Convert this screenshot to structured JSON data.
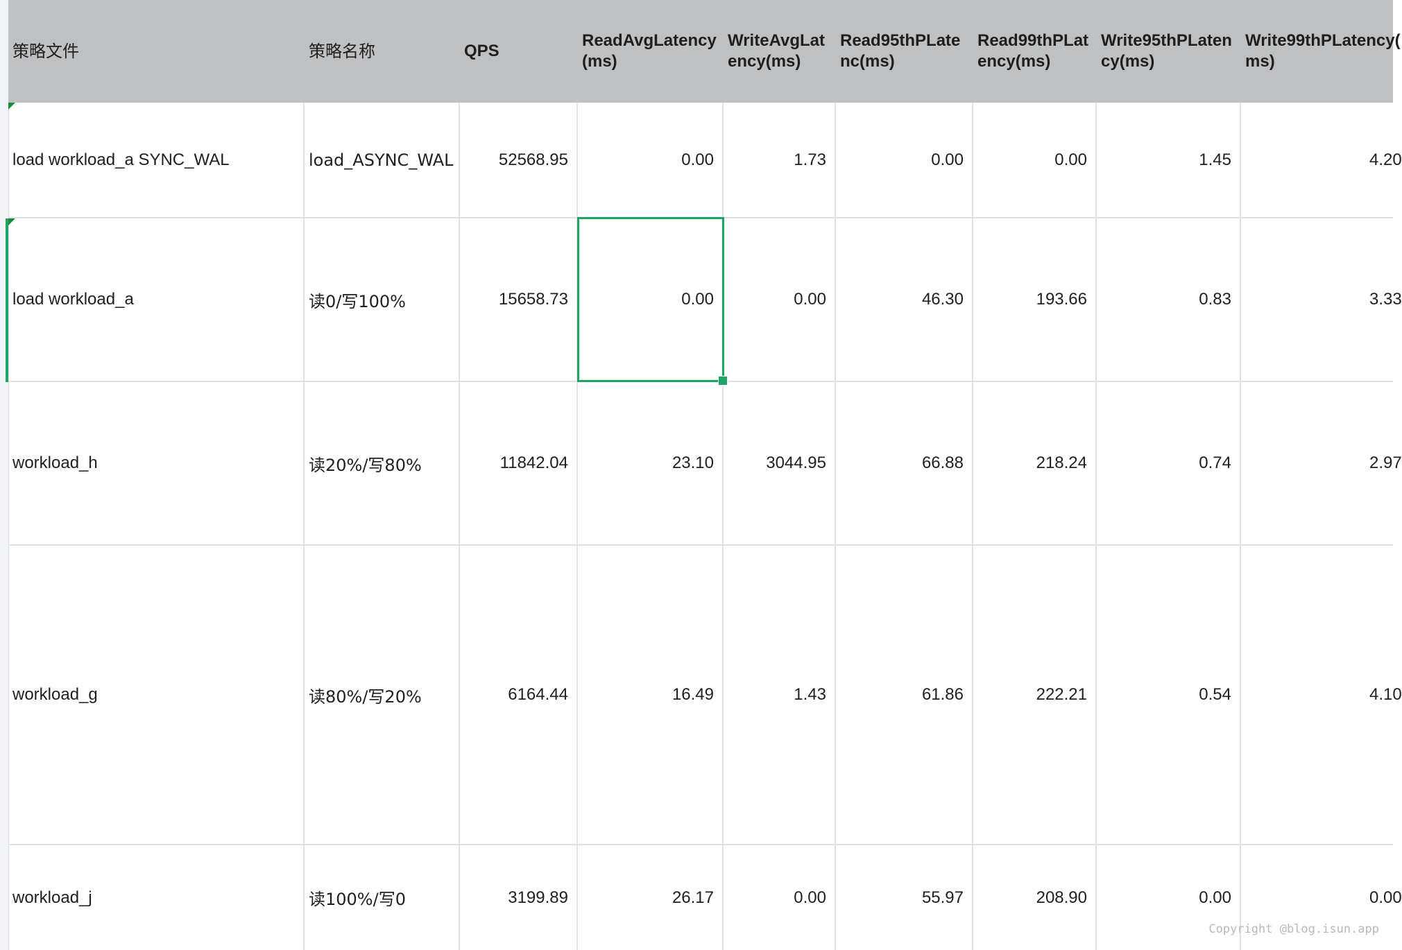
{
  "columns": [
    {
      "label": "策略文件"
    },
    {
      "label": "策略名称"
    },
    {
      "label": "QPS"
    },
    {
      "label": "ReadAvgLatency\n(ms)"
    },
    {
      "label": "WriteAvgLat\nency(ms)"
    },
    {
      "label": "Read95thPLate\nnc(ms)"
    },
    {
      "label": "Read99thPLat\nency(ms)"
    },
    {
      "label": "Write95thPLaten\ncy(ms)"
    },
    {
      "label": "Write99thPLatency(\nms)"
    }
  ],
  "rows": [
    {
      "file": "load workload_a SYNC_WAL",
      "name": "load_ASYNC_WAL",
      "qps": "52568.95",
      "read_avg": "0.00",
      "write_avg": "1.73",
      "read95": "0.00",
      "read99": "0.00",
      "write95": "1.45",
      "write99": "4.20"
    },
    {
      "file": "load workload_a",
      "name": "读0/写100%",
      "qps": "15658.73",
      "read_avg": "0.00",
      "write_avg": "0.00",
      "read95": "46.30",
      "read99": "193.66",
      "write95": "0.83",
      "write99": "3.33"
    },
    {
      "file": "workload_h",
      "name": "读20%/写80%",
      "qps": "11842.04",
      "read_avg": "23.10",
      "write_avg": "3044.95",
      "read95": "66.88",
      "read99": "218.24",
      "write95": "0.74",
      "write99": "2.97"
    },
    {
      "file": "workload_g",
      "name": "读80%/写20%",
      "qps": "6164.44",
      "read_avg": "16.49",
      "write_avg": "1.43",
      "read95": "61.86",
      "read99": "222.21",
      "write95": "0.54",
      "write99": "4.10"
    },
    {
      "file": "workload_j",
      "name": "读100%/写0",
      "qps": "3199.89",
      "read_avg": "26.17",
      "write_avg": "0.00",
      "read95": "55.97",
      "read99": "208.90",
      "write95": "0.00",
      "write99": "0.00"
    }
  ],
  "selected_cell": {
    "row": 1,
    "column": "read_avg"
  },
  "watermark": "Copyright @blog.isun.app",
  "colors": {
    "header_bg": "#bfc0c2",
    "grid_line": "#dde1ea",
    "selection": "#21a366",
    "comment_marker": "#1b8a3a"
  }
}
